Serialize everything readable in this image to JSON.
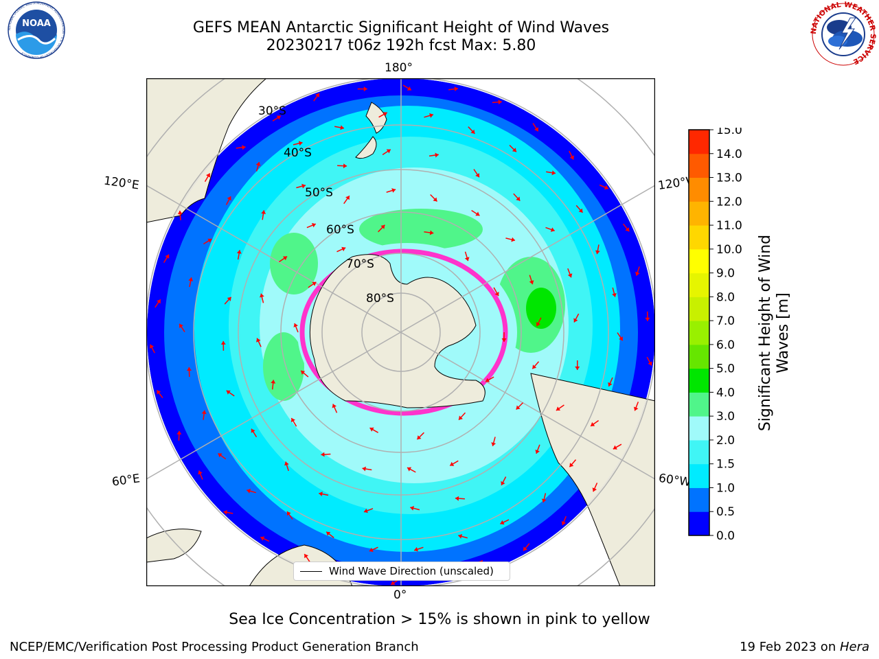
{
  "header": {
    "title_line1": "GEFS MEAN Antarctic Significant Height of Wind Waves",
    "title_line2": "20230217 t06z 192h fcst   Max: 5.80"
  },
  "logos": {
    "left": {
      "icon": "noaa-logo-icon",
      "text": "NOAA",
      "ring_text": "NATIONAL OCEANIC AND ATMOSPHERIC ADMINISTRATION · U.S. DEPARTMENT OF COMMERCE"
    },
    "right": {
      "icon": "national-weather-service-logo-icon",
      "ring_text": "NATIONAL WEATHER SERVICE"
    }
  },
  "map": {
    "projection": "south-polar-stereographic",
    "latitude_labels": [
      "30°S",
      "40°S",
      "50°S",
      "60°S",
      "70°S",
      "80°S"
    ],
    "longitude_labels": {
      "top": "180°",
      "bottom": "0°",
      "upper_left": "120°E",
      "lower_left": "60°E",
      "upper_right": "120°W",
      "lower_right": "60°W"
    },
    "legend_label": "Wind Wave Direction (unscaled)",
    "colors": {
      "land": "#eeecdc",
      "arrow": "#ff0000",
      "graticule": "#b0b0b0",
      "sea_ice": [
        "#ff33cc",
        "#ffff66"
      ]
    }
  },
  "colorbar": {
    "title_line1": "Significant Height of Wind",
    "title_line2": "Waves [m]",
    "ticks": [
      "0.0",
      "0.5",
      "1.0",
      "1.5",
      "2.0",
      "3.0",
      "4.0",
      "5.0",
      "6.0",
      "7.0",
      "8.0",
      "9.0",
      "10.0",
      "11.0",
      "12.0",
      "13.0",
      "14.0",
      "15.0"
    ],
    "colors": [
      "#0000ff",
      "#0073ff",
      "#00ebff",
      "#40f5f5",
      "#a0fafa",
      "#50f58a",
      "#00e600",
      "#66e600",
      "#99f000",
      "#c8f000",
      "#e6f500",
      "#ffff00",
      "#ffd700",
      "#ffb400",
      "#ff8c00",
      "#ff5a00",
      "#ff2800"
    ]
  },
  "footer": {
    "note": "Sea Ice Concentration > 15% is shown in pink to yellow",
    "left": "NCEP/EMC/Verification Post Processing Product Generation Branch",
    "right_prefix": "19 Feb 2023 on ",
    "right_host": "Hera"
  }
}
